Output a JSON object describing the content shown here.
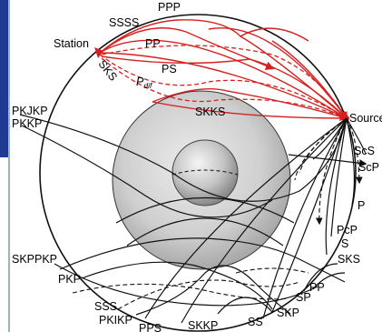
{
  "labels": {
    "station": "Station",
    "source": "Source",
    "pp_top": "PPP",
    "ssss": "SSSS",
    "pp": "PP",
    "sks_left": "SKS",
    "ps": "PS",
    "pdif_main": "P",
    "pdif_sub": "dif",
    "skks": "SKKS",
    "pkjkp": "PKJKP",
    "pkkp": "PKKP",
    "scs": "ScS",
    "scp": "ScP",
    "p": "P",
    "pcp": "PcP",
    "s": "S",
    "sks_right": "SKS",
    "skppkp": "SKPPKP",
    "pkp": "PKP",
    "sss": "SSS",
    "pkikp": "PKIKP",
    "pps": "PPS",
    "skkp": "SKKP",
    "ss": "SS",
    "skp": "SKP",
    "sp": "SP",
    "pp_bottom": "PP"
  },
  "colors": {
    "p_wave": "#d62020",
    "s_wave": "#d62020",
    "rays": "#111111",
    "outer_core": "#c8c8c8",
    "inner_core": "#a9a9a9",
    "accent": "#1f3a93"
  }
}
